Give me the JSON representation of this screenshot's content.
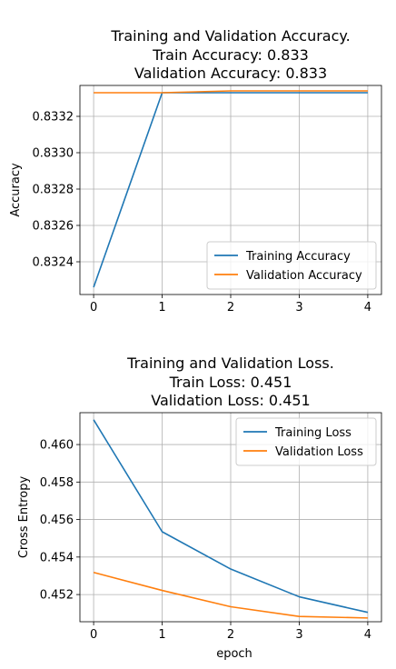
{
  "chart_data": [
    {
      "type": "line",
      "title_lines": [
        "Training and Validation Accuracy.",
        "Train Accuracy: 0.833",
        "Validation Accuracy: 0.833"
      ],
      "xlabel": "",
      "ylabel": "Accuracy",
      "x": [
        0,
        1,
        2,
        3,
        4
      ],
      "xlim": [
        -0.2,
        4.2
      ],
      "ylim": [
        0.83222,
        0.83337
      ],
      "xticks": [
        0,
        1,
        2,
        3,
        4
      ],
      "yticks": [
        0.8324,
        0.8326,
        0.8328,
        0.833,
        0.8332
      ],
      "ytick_labels": [
        "0.8324",
        "0.8326",
        "0.8328",
        "0.8330",
        "0.8332"
      ],
      "grid": true,
      "legend_position": "lower-right",
      "series": [
        {
          "name": "Training Accuracy",
          "color": "#1f77b4",
          "values": [
            0.83226,
            0.83333,
            0.83333,
            0.83333,
            0.83333
          ]
        },
        {
          "name": "Validation Accuracy",
          "color": "#ff7f0e",
          "values": [
            0.83333,
            0.83333,
            0.83334,
            0.83334,
            0.83334
          ]
        }
      ]
    },
    {
      "type": "line",
      "title_lines": [
        "Training and Validation Loss.",
        "Train Loss: 0.451",
        "Validation Loss: 0.451"
      ],
      "xlabel": "epoch",
      "ylabel": "Cross Entropy",
      "x": [
        0,
        1,
        2,
        3,
        4
      ],
      "xlim": [
        -0.2,
        4.2
      ],
      "ylim": [
        0.45055,
        0.4617
      ],
      "xticks": [
        0,
        1,
        2,
        3,
        4
      ],
      "yticks": [
        0.452,
        0.454,
        0.456,
        0.458,
        0.46
      ],
      "ytick_labels": [
        "0.452",
        "0.454",
        "0.456",
        "0.458",
        "0.460"
      ],
      "grid": true,
      "legend_position": "upper-right",
      "series": [
        {
          "name": "Training Loss",
          "color": "#1f77b4",
          "values": [
            0.46132,
            0.45535,
            0.45336,
            0.45188,
            0.45105
          ]
        },
        {
          "name": "Validation Loss",
          "color": "#ff7f0e",
          "values": [
            0.45318,
            0.45222,
            0.45135,
            0.45083,
            0.45075
          ]
        }
      ]
    }
  ]
}
